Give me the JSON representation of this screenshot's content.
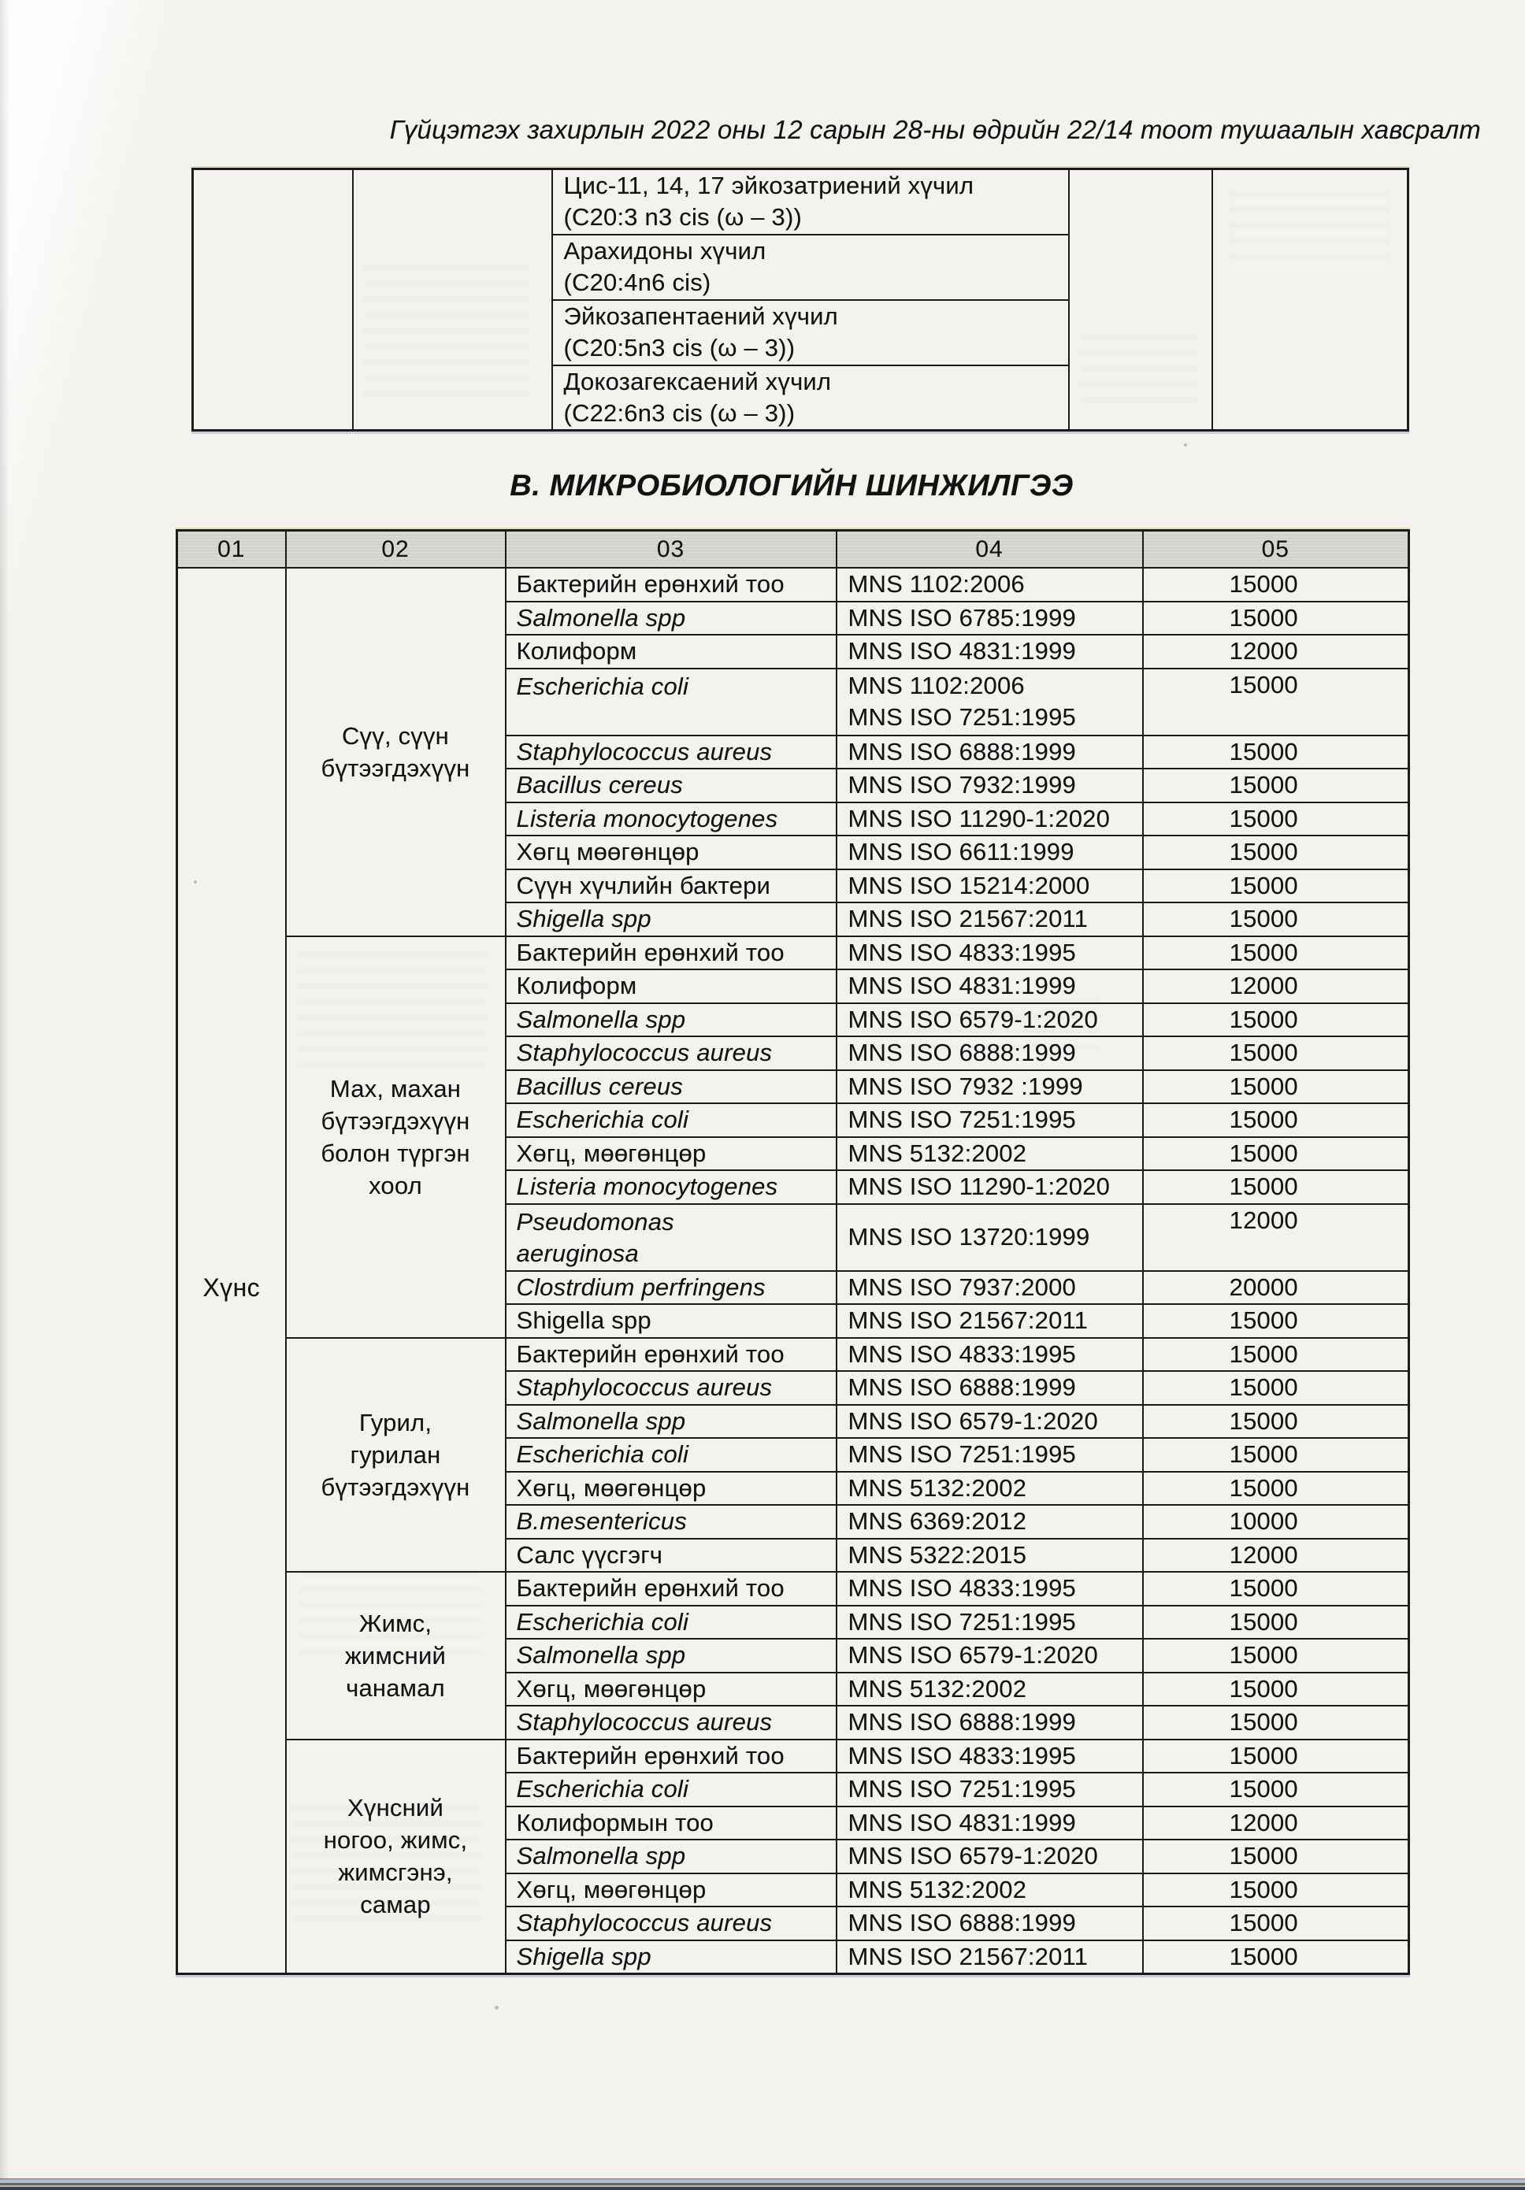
{
  "page": {
    "header_note": "Гүйцэтгэх захирлын 2022 оны 12 сарын 28-ны  өдрийн 22/14 тоот тушаалын хавсралт",
    "section_title": "В. МИКРОБИОЛОГИЙН ШИНЖИЛГЭЭ"
  },
  "colors": {
    "paper": "#f3f2ed",
    "table_line": "#1b1b1b",
    "header_row_fill": "#d9d9d4",
    "scanner_edge": "#32405a"
  },
  "fatty_acids_table": {
    "rows": [
      {
        "name": "Цис-11, 14, 17 эйкозатриений хүчил",
        "formula": "(C20:3 n3 cis (ω – 3))"
      },
      {
        "name": "Арахидоны хүчил",
        "formula": "(C20:4n6 cis)"
      },
      {
        "name": "Эйкозапентаений хүчил",
        "formula": "(C20:5n3 cis (ω – 3))"
      },
      {
        "name": "Докозагексаений  хүчил",
        "formula": "(C22:6n3 cis (ω – 3))"
      }
    ]
  },
  "micro_table": {
    "column_headers": [
      "01",
      "02",
      "03",
      "04",
      "05"
    ],
    "category_label": "Хүнс",
    "groups": [
      {
        "label_lines": [
          "Сүү, сүүн",
          "бүтээгдэхүүн"
        ],
        "rows": [
          {
            "test": "Бактерийн ерөнхий тоо",
            "italic": false,
            "standards": [
              "MNS 1102:2006"
            ],
            "fee": "15000"
          },
          {
            "test": "Salmonella spp",
            "italic": true,
            "standards": [
              "MNS ISO 6785:1999"
            ],
            "fee": "15000"
          },
          {
            "test": "Колиформ",
            "italic": false,
            "standards": [
              "MNS ISO 4831:1999"
            ],
            "fee": "12000"
          },
          {
            "test": "Escherichia coli",
            "italic": true,
            "standards": [
              "MNS 1102:2006",
              "MNS ISO 7251:1995"
            ],
            "fee": "15000",
            "tall": true
          },
          {
            "test": "Staphylococcus aureus",
            "italic": true,
            "standards": [
              "MNS ISO 6888:1999"
            ],
            "fee": "15000"
          },
          {
            "test": "Bacillus cereus",
            "italic": true,
            "standards": [
              "MNS ISO 7932:1999"
            ],
            "fee": "15000"
          },
          {
            "test": "Listeria monocytogenes",
            "italic": true,
            "standards": [
              "MNS ISO 11290-1:2020"
            ],
            "fee": "15000"
          },
          {
            "test": "Хөгц мөөгөнцөр",
            "italic": false,
            "standards": [
              "MNS ISO 6611:1999"
            ],
            "fee": "15000"
          },
          {
            "test": "Сүүн хүчлийн бактери",
            "italic": false,
            "standards": [
              "MNS ISO 15214:2000"
            ],
            "fee": "15000"
          },
          {
            "test": "Shigella spp",
            "italic": true,
            "standards": [
              "MNS ISO 21567:2011"
            ],
            "fee": "15000"
          }
        ]
      },
      {
        "label_lines": [
          "Мах, махан",
          "бүтээгдэхүүн",
          "болон түргэн",
          "хоол"
        ],
        "rows": [
          {
            "test": "Бактерийн ерөнхий тоо",
            "italic": false,
            "standards": [
              "MNS ISO 4833:1995"
            ],
            "fee": "15000"
          },
          {
            "test": "Колиформ",
            "italic": false,
            "standards": [
              "MNS  ISO 4831:1999"
            ],
            "fee": "12000"
          },
          {
            "test": "Salmonella spp",
            "italic": true,
            "standards": [
              "MNS ISO 6579-1:2020"
            ],
            "fee": "15000"
          },
          {
            "test": "Staphylococcus aureus",
            "italic": true,
            "standards": [
              "MNS ISO 6888:1999"
            ],
            "fee": "15000"
          },
          {
            "test": "Bacillus cereus",
            "italic": true,
            "standards": [
              "MNS ISO 7932 :1999"
            ],
            "fee": "15000"
          },
          {
            "test": "Escherichia coli",
            "italic": true,
            "standards": [
              "MNS ISO 7251:1995"
            ],
            "fee": "15000"
          },
          {
            "test": "Хөгц, мөөгөнцөр",
            "italic": false,
            "standards": [
              "MNS  5132:2002"
            ],
            "fee": "15000"
          },
          {
            "test": "Listeria monocytogenes",
            "italic": true,
            "standards": [
              "MNS ISO 11290-1:2020"
            ],
            "fee": "15000"
          },
          {
            "test": "Pseudomonas aeruginosa",
            "name_lines": [
              "Pseudomonas",
              "aeruginosa"
            ],
            "italic": true,
            "standards": [
              "MNS ISO 13720:1999"
            ],
            "fee": "12000",
            "tall": true
          },
          {
            "test": "Clostrdium perfringens",
            "italic": true,
            "standards": [
              "MNS ISO 7937:2000"
            ],
            "fee": "20000"
          },
          {
            "test": "Shigella spp",
            "italic": false,
            "standards": [
              "MNS ISO 21567:2011"
            ],
            "fee": "15000"
          }
        ]
      },
      {
        "label_lines": [
          "Гурил,",
          "гурилан",
          "бүтээгдэхүүн"
        ],
        "rows": [
          {
            "test": "Бактерийн ерөнхий тоо",
            "italic": false,
            "standards": [
              "MNS ISO 4833:1995"
            ],
            "fee": "15000"
          },
          {
            "test": "Staphylococcus aureus",
            "italic": true,
            "standards": [
              "MNS ISO 6888:1999"
            ],
            "fee": "15000"
          },
          {
            "test": "Salmonella spp",
            "italic": true,
            "standards": [
              "MNS ISO 6579-1:2020"
            ],
            "fee": "15000"
          },
          {
            "test": "Escherichia coli",
            "italic": true,
            "standards": [
              "MNS ISO 7251:1995"
            ],
            "fee": "15000"
          },
          {
            "test": "Хөгц, мөөгөнцөр",
            "italic": false,
            "standards": [
              "MNS 5132:2002"
            ],
            "fee": "15000"
          },
          {
            "test": "B.mesentericus",
            "italic": true,
            "standards": [
              "MNS 6369:2012"
            ],
            "fee": "10000"
          },
          {
            "test": "Салс үүсгэгч",
            "italic": false,
            "standards": [
              "MNS 5322:2015"
            ],
            "fee": "12000"
          }
        ]
      },
      {
        "label_lines": [
          "Жимс,",
          "жимсний",
          "чанамал"
        ],
        "rows": [
          {
            "test": "Бактерийн ерөнхий тоо",
            "italic": false,
            "standards": [
              "MNS ISO 4833:1995"
            ],
            "fee": "15000"
          },
          {
            "test": "Escherichia coli",
            "italic": true,
            "standards": [
              "MNS ISO 7251:1995"
            ],
            "fee": "15000"
          },
          {
            "test": "Salmonella spp",
            "italic": true,
            "standards": [
              "MNS ISO 6579-1:2020"
            ],
            "fee": "15000"
          },
          {
            "test": "Хөгц, мөөгөнцөр",
            "italic": false,
            "standards": [
              "MNS 5132:2002"
            ],
            "fee": "15000"
          },
          {
            "test": "Staphylococcus aureus",
            "italic": true,
            "standards": [
              "MNS ISO 6888:1999"
            ],
            "fee": "15000"
          }
        ]
      },
      {
        "label_lines": [
          "Хүнсний",
          "ногоо, жимс,",
          "жимсгэнэ,",
          "самар"
        ],
        "rows": [
          {
            "test": "Бактерийн ерөнхий тоо",
            "italic": false,
            "standards": [
              "MNS ISO 4833:1995"
            ],
            "fee": "15000"
          },
          {
            "test": "Escherichia coli",
            "italic": true,
            "standards": [
              "MNS ISO 7251:1995"
            ],
            "fee": "15000"
          },
          {
            "test": "Колиформын тоо",
            "italic": false,
            "standards": [
              "MNS  ISO 4831:1999"
            ],
            "fee": "12000"
          },
          {
            "test": "Salmonella spp",
            "italic": true,
            "standards": [
              "MNS ISO 6579-1:2020"
            ],
            "fee": "15000"
          },
          {
            "test": "Хөгц, мөөгөнцөр",
            "italic": false,
            "standards": [
              "MNS 5132:2002"
            ],
            "fee": "15000"
          },
          {
            "test": "Staphylococcus aureus",
            "italic": true,
            "standards": [
              "MNS ISO 6888:1999"
            ],
            "fee": "15000"
          },
          {
            "test": "Shigella spp",
            "italic": true,
            "standards": [
              "MNS ISO 21567:2011"
            ],
            "fee": "15000"
          }
        ]
      }
    ]
  }
}
